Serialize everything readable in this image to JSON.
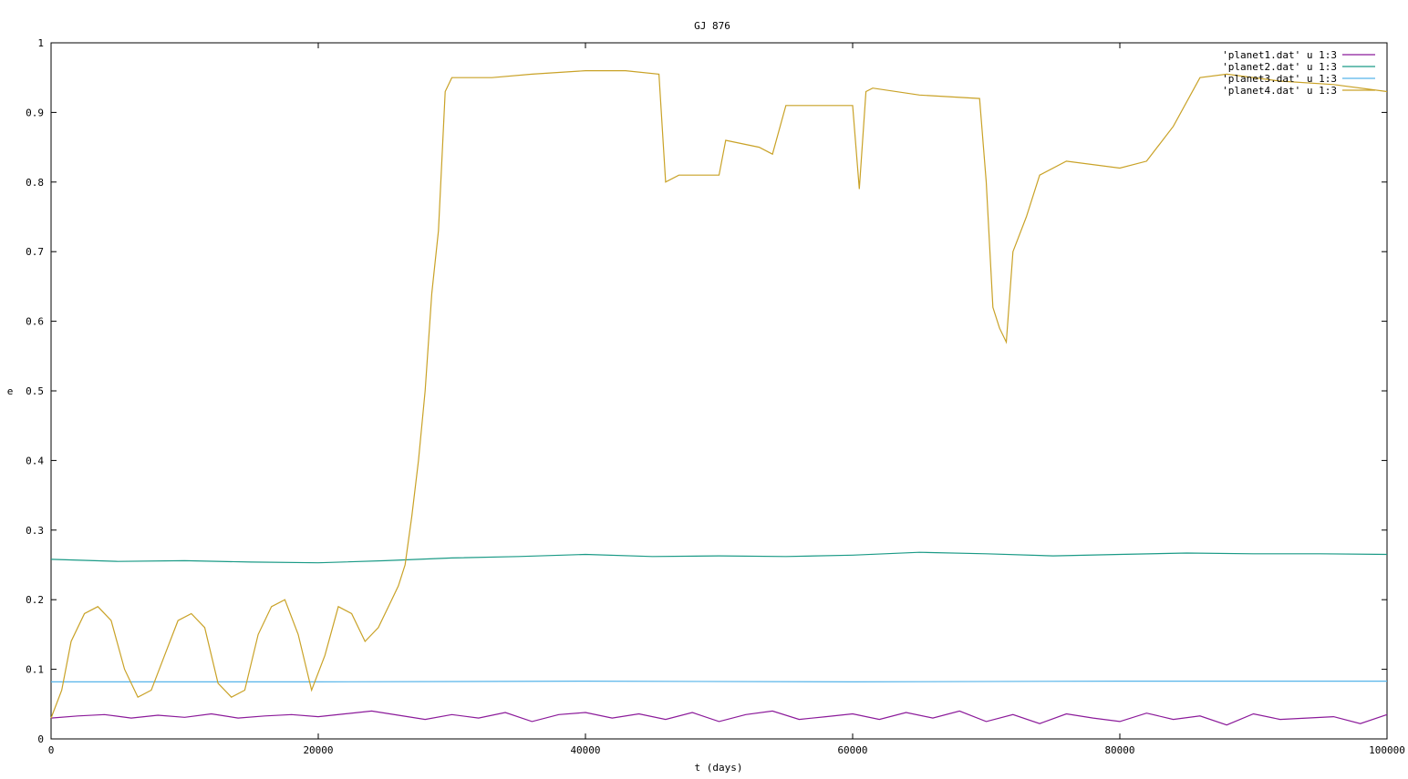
{
  "chart_data": {
    "type": "line",
    "title": "GJ 876",
    "xlabel": "t (days)",
    "ylabel": "e",
    "xlim": [
      0,
      100000
    ],
    "ylim": [
      0,
      1
    ],
    "x_ticks": [
      0,
      20000,
      40000,
      60000,
      80000,
      100000
    ],
    "x_tick_labels": [
      "0",
      "20000",
      "40000",
      "60000",
      "80000",
      "100000"
    ],
    "y_ticks": [
      0,
      0.1,
      0.2,
      0.3,
      0.4,
      0.5,
      0.6,
      0.7,
      0.8,
      0.9,
      1
    ],
    "y_tick_labels": [
      "0",
      "0.1",
      "0.2",
      "0.3",
      "0.4",
      "0.5",
      "0.6",
      "0.7",
      "0.8",
      "0.9",
      "1"
    ],
    "grid": false,
    "legend_position": "top-right",
    "series": [
      {
        "name": "'planet1.dat' u 1:3",
        "color": "#8b1a9a",
        "x": [
          0,
          2000,
          4000,
          6000,
          8000,
          10000,
          12000,
          14000,
          16000,
          18000,
          20000,
          22000,
          24000,
          26000,
          28000,
          30000,
          32000,
          34000,
          36000,
          38000,
          40000,
          42000,
          44000,
          46000,
          48000,
          50000,
          52000,
          54000,
          56000,
          58000,
          60000,
          62000,
          64000,
          66000,
          68000,
          70000,
          72000,
          74000,
          76000,
          78000,
          80000,
          82000,
          84000,
          86000,
          88000,
          90000,
          92000,
          94000,
          96000,
          98000,
          100000
        ],
        "values": [
          0.03,
          0.033,
          0.035,
          0.03,
          0.034,
          0.031,
          0.036,
          0.03,
          0.033,
          0.035,
          0.032,
          0.036,
          0.04,
          0.034,
          0.028,
          0.035,
          0.03,
          0.038,
          0.025,
          0.035,
          0.038,
          0.03,
          0.036,
          0.028,
          0.038,
          0.025,
          0.035,
          0.04,
          0.028,
          0.032,
          0.036,
          0.028,
          0.038,
          0.03,
          0.04,
          0.025,
          0.035,
          0.022,
          0.036,
          0.03,
          0.025,
          0.037,
          0.028,
          0.033,
          0.02,
          0.036,
          0.028,
          0.03,
          0.032,
          0.022,
          0.035
        ]
      },
      {
        "name": "'planet2.dat' u 1:3",
        "color": "#1a9a86",
        "x": [
          0,
          5000,
          10000,
          15000,
          20000,
          25000,
          30000,
          35000,
          40000,
          45000,
          50000,
          55000,
          60000,
          65000,
          70000,
          75000,
          80000,
          85000,
          90000,
          95000,
          100000
        ],
        "values": [
          0.258,
          0.255,
          0.256,
          0.254,
          0.253,
          0.256,
          0.26,
          0.262,
          0.265,
          0.262,
          0.263,
          0.262,
          0.264,
          0.268,
          0.266,
          0.263,
          0.265,
          0.267,
          0.266,
          0.266,
          0.265
        ]
      },
      {
        "name": "'planet3.dat' u 1:3",
        "color": "#56b4e9",
        "x": [
          0,
          20000,
          40000,
          60000,
          80000,
          100000
        ],
        "values": [
          0.082,
          0.082,
          0.083,
          0.082,
          0.083,
          0.083
        ]
      },
      {
        "name": "'planet4.dat' u 1:3",
        "color": "#c9a227",
        "x": [
          0,
          800,
          1500,
          2500,
          3500,
          4500,
          5500,
          6500,
          7500,
          8500,
          9500,
          10500,
          11500,
          12500,
          13500,
          14500,
          15500,
          16500,
          17500,
          18500,
          19500,
          20500,
          21500,
          22500,
          23500,
          24500,
          25500,
          26000,
          26500,
          27000,
          27500,
          28000,
          28500,
          29000,
          29500,
          30000,
          33000,
          36000,
          40000,
          43000,
          45500,
          46000,
          47000,
          50000,
          50500,
          53000,
          54000,
          55000,
          60000,
          60500,
          61000,
          61500,
          65000,
          69500,
          70000,
          70500,
          71000,
          71500,
          72000,
          73000,
          74000,
          76000,
          80000,
          82000,
          84000,
          86000,
          88000,
          92000,
          96000,
          100000
        ],
        "values": [
          0.03,
          0.07,
          0.14,
          0.18,
          0.19,
          0.17,
          0.1,
          0.06,
          0.07,
          0.12,
          0.17,
          0.18,
          0.16,
          0.08,
          0.06,
          0.07,
          0.15,
          0.19,
          0.2,
          0.15,
          0.07,
          0.12,
          0.19,
          0.18,
          0.14,
          0.16,
          0.2,
          0.22,
          0.25,
          0.32,
          0.4,
          0.5,
          0.64,
          0.73,
          0.93,
          0.95,
          0.95,
          0.955,
          0.96,
          0.96,
          0.955,
          0.8,
          0.81,
          0.81,
          0.86,
          0.85,
          0.84,
          0.91,
          0.91,
          0.79,
          0.93,
          0.935,
          0.925,
          0.92,
          0.8,
          0.62,
          0.59,
          0.57,
          0.7,
          0.75,
          0.81,
          0.83,
          0.82,
          0.83,
          0.88,
          0.95,
          0.955,
          0.945,
          0.94,
          0.93
        ]
      }
    ]
  }
}
